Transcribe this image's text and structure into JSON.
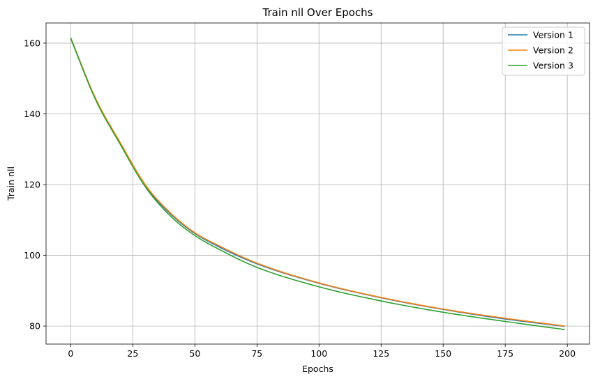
{
  "chart_data": {
    "type": "line",
    "title": "Train nll Over Epochs",
    "xlabel": "Epochs",
    "ylabel": "Train nll",
    "xlim": [
      -9.95,
      208.95
    ],
    "ylim": [
      74.9,
      165.7
    ],
    "xticks": [
      0,
      25,
      50,
      75,
      100,
      125,
      150,
      175,
      200
    ],
    "yticks": [
      80,
      100,
      120,
      140,
      160
    ],
    "grid": true,
    "legend_position": "top-right",
    "series": [
      {
        "name": "Version 1",
        "color": "#1f77b4",
        "x": [
          0,
          10,
          20,
          30,
          40,
          50,
          60,
          75,
          100,
          125,
          150,
          175,
          199
        ],
        "y": [
          161.5,
          144.3,
          131.5,
          119.7,
          111.8,
          106.2,
          102.3,
          97.6,
          92.1,
          88.0,
          84.7,
          82.0,
          79.9
        ]
      },
      {
        "name": "Version 2",
        "color": "#ff7f0e",
        "x": [
          0,
          10,
          20,
          30,
          40,
          50,
          60,
          75,
          100,
          125,
          150,
          175,
          199
        ],
        "y": [
          161.4,
          144.4,
          131.8,
          120.0,
          112.1,
          106.4,
          102.6,
          97.8,
          92.2,
          88.1,
          84.8,
          82.2,
          80.0
        ]
      },
      {
        "name": "Version 3",
        "color": "#2ca02c",
        "x": [
          0,
          10,
          20,
          30,
          40,
          50,
          60,
          75,
          100,
          125,
          150,
          175,
          199
        ],
        "y": [
          161.3,
          144.0,
          131.3,
          119.4,
          111.2,
          105.6,
          101.6,
          96.6,
          91.1,
          87.1,
          83.9,
          81.3,
          79.0
        ]
      }
    ]
  }
}
